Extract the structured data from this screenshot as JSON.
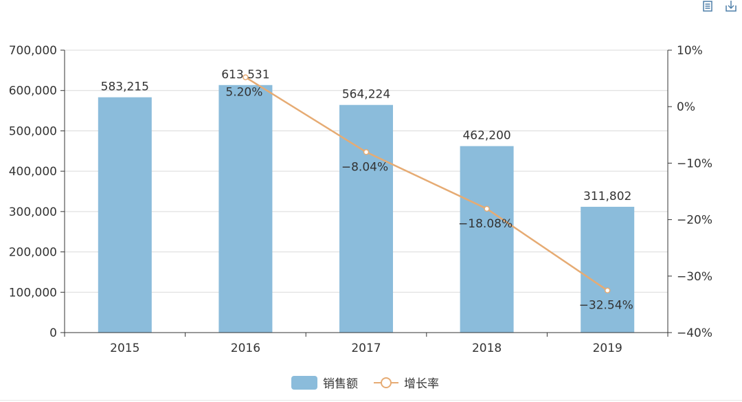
{
  "toolbar": {
    "icons": [
      "data-view-icon",
      "save-image-icon"
    ]
  },
  "chart_data": {
    "type": "bar+line",
    "categories": [
      "2015",
      "2016",
      "2017",
      "2018",
      "2019"
    ],
    "series": [
      {
        "name": "销售额",
        "type": "bar",
        "axis": "left",
        "color": "#8bbcdb",
        "values": [
          583215,
          613531,
          564224,
          462200,
          311802
        ],
        "labels": [
          "583,215",
          "613,531",
          "564,224",
          "462,200",
          "311,802"
        ]
      },
      {
        "name": "增长率",
        "type": "line",
        "axis": "right",
        "color": "#e6ab73",
        "values": [
          null,
          5.2,
          -8.04,
          -18.08,
          -32.54
        ],
        "labels": [
          "",
          "5.20%",
          "−8.04%",
          "−18.08%",
          "−32.54%"
        ]
      }
    ],
    "y_left": {
      "range": [
        0,
        700000
      ],
      "ticks": [
        0,
        100000,
        200000,
        300000,
        400000,
        500000,
        600000,
        700000
      ],
      "tick_labels": [
        "0",
        "100,000",
        "200,000",
        "300,000",
        "400,000",
        "500,000",
        "600,000",
        "700,000"
      ]
    },
    "y_right": {
      "range": [
        -40,
        10
      ],
      "ticks": [
        10,
        0,
        -10,
        -20,
        -30,
        -40
      ],
      "tick_labels": [
        "10%",
        "0%",
        "−10%",
        "−20%",
        "−30%",
        "−40%"
      ]
    },
    "grid": true,
    "legend": "bottom-center",
    "colors": {
      "axis": "#333333",
      "grid": "#d9d9d9",
      "text": "#333333",
      "icon": "#4d7ea8"
    }
  }
}
